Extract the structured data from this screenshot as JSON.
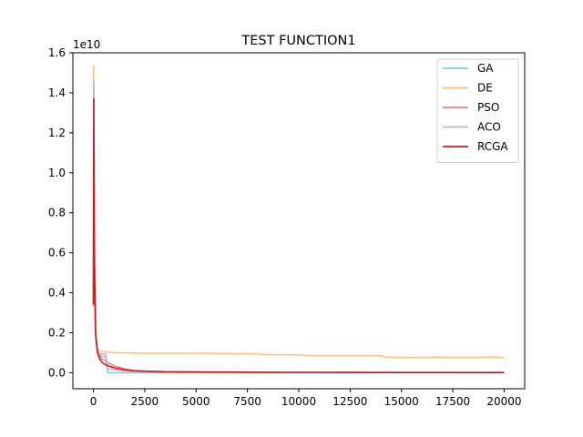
{
  "chart_data": {
    "type": "line",
    "title": "TEST FUNCTION1",
    "xlabel": "",
    "ylabel": "",
    "y_offset_label": "1e10",
    "xlim": [
      -1000,
      21000
    ],
    "ylim": [
      -0.08,
      1.6
    ],
    "xticks": [
      0,
      2500,
      5000,
      7500,
      10000,
      12500,
      15000,
      17500,
      20000
    ],
    "xtick_labels": [
      "0",
      "2500",
      "5000",
      "7500",
      "10000",
      "12500",
      "15000",
      "17500",
      "20000"
    ],
    "yticks": [
      0.0,
      0.2,
      0.4,
      0.6,
      0.8,
      1.0,
      1.2,
      1.4,
      1.6
    ],
    "ytick_labels": [
      "0.0",
      "0.2",
      "0.4",
      "0.6",
      "0.8",
      "1.0",
      "1.2",
      "1.4",
      "1.6"
    ],
    "legend_position": "top-right",
    "grid": false,
    "series": [
      {
        "name": "GA",
        "color": "#80cfd0",
        "x": [
          0,
          20,
          60,
          150,
          300,
          500,
          600,
          650,
          700,
          1000,
          1500,
          2000,
          3000,
          5000,
          10000,
          15000,
          20000
        ],
        "y": [
          0.35,
          1.38,
          0.55,
          0.14,
          0.09,
          0.08,
          0.08,
          0.05,
          0.0,
          0.0,
          0.0,
          0.0,
          0.0,
          0.0,
          0.0,
          0.0,
          0.0
        ]
      },
      {
        "name": "DE",
        "color": "#ffbf7f",
        "x": [
          0,
          10,
          30,
          60,
          120,
          200,
          500,
          1000,
          2500,
          5000,
          6500,
          8000,
          8100,
          10000,
          10500,
          12500,
          14000,
          14200,
          15500,
          16500,
          18000,
          19500,
          20000
        ],
        "y": [
          0.33,
          1.535,
          1.0,
          0.5,
          0.18,
          0.115,
          0.105,
          0.1,
          0.098,
          0.097,
          0.096,
          0.095,
          0.091,
          0.089,
          0.085,
          0.085,
          0.085,
          0.078,
          0.076,
          0.078,
          0.077,
          0.078,
          0.076
        ]
      },
      {
        "name": "PSO",
        "color": "#f08080",
        "x": [
          0,
          10,
          40,
          100,
          200,
          400,
          600,
          700,
          800,
          1000,
          1500,
          2000,
          3000,
          5000,
          10000,
          15000,
          20000
        ],
        "y": [
          0.34,
          1.44,
          0.6,
          0.2,
          0.1,
          0.07,
          0.06,
          0.05,
          0.045,
          0.035,
          0.02,
          0.01,
          0.005,
          0.003,
          0.001,
          0.0008,
          0.0005
        ]
      },
      {
        "name": "ACO",
        "color": "#c0b0d8",
        "x": [
          0,
          15,
          50,
          120,
          250,
          400,
          600,
          650,
          700,
          1000,
          1500,
          2000,
          2500,
          5000,
          10000,
          15000,
          20000
        ],
        "y": [
          0.34,
          1.46,
          0.6,
          0.15,
          0.1,
          0.095,
          0.092,
          0.03,
          0.02,
          0.015,
          0.01,
          0.007,
          0.006,
          0.004,
          0.003,
          0.002,
          0.002
        ]
      },
      {
        "name": "RCGA",
        "color": "#c02020",
        "x": [
          0,
          20,
          50,
          100,
          200,
          300,
          400,
          500,
          700,
          1000,
          1500,
          2000,
          2500,
          3500,
          5000,
          7500,
          10000,
          15000,
          20000
        ],
        "y": [
          0.34,
          1.37,
          0.55,
          0.2,
          0.1,
          0.07,
          0.055,
          0.045,
          0.035,
          0.025,
          0.015,
          0.01,
          0.008,
          0.005,
          0.004,
          0.003,
          0.002,
          0.001,
          0.001
        ]
      }
    ]
  }
}
